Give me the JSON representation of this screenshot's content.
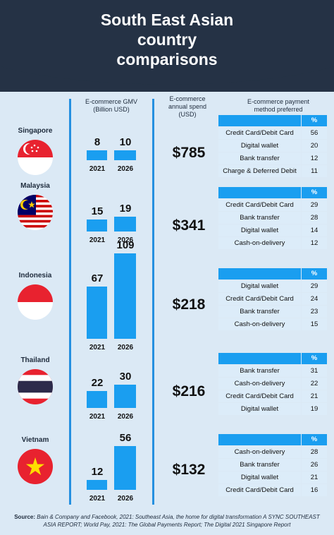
{
  "title_lines": [
    "South East Asian",
    "country",
    "comparisons"
  ],
  "column_headers": {
    "gmv": [
      "E-commerce GMV",
      "(Billion USD)"
    ],
    "spend": [
      "E-commerce",
      "annual spend",
      "(USD)"
    ],
    "payment": [
      "E-commerce payment",
      "method preferred"
    ]
  },
  "percent_header": "%",
  "source": {
    "label": "Source:",
    "text": "Bain & Company and Facebook, 2021: Southeast Asia, the home for digital transformation A SYNC SOUTHEAST ASIA REPORT; World Pay, 2021: The Global Payments Report; The Digital 2021 Singapore Report"
  },
  "colors": {
    "accent": "#1a9ef0",
    "header": "#253245",
    "background": "#dbe9f5",
    "row": "#dcecf9"
  },
  "chart_data": {
    "type": "bar",
    "categories": [
      "2021",
      "2026"
    ],
    "countries": [
      {
        "name": "Singapore",
        "flag": "singapore-flag",
        "gmv": [
          8,
          10
        ],
        "spend": "$785",
        "payments": [
          [
            "Credit Card/Debit Card",
            56
          ],
          [
            "Digital wallet",
            20
          ],
          [
            "Bank transfer",
            12
          ],
          [
            "Charge & Deferred Debit",
            11
          ]
        ]
      },
      {
        "name": "Malaysia",
        "flag": "malaysia-flag",
        "gmv": [
          15,
          19
        ],
        "spend": "$341",
        "payments": [
          [
            "Credit Card/Debit Card",
            29
          ],
          [
            "Bank transfer",
            28
          ],
          [
            "Digital wallet",
            14
          ],
          [
            "Cash-on-delivery",
            12
          ]
        ]
      },
      {
        "name": "Indonesia",
        "flag": "indonesia-flag",
        "gmv": [
          67,
          109
        ],
        "spend": "$218",
        "payments": [
          [
            "Digital wallet",
            29
          ],
          [
            "Credit Card/Debit Card",
            24
          ],
          [
            "Bank transfer",
            23
          ],
          [
            "Cash-on-delivery",
            15
          ]
        ]
      },
      {
        "name": "Thailand",
        "flag": "thailand-flag",
        "gmv": [
          22,
          30
        ],
        "spend": "$216",
        "payments": [
          [
            "Bank transfer",
            31
          ],
          [
            "Cash-on-delivery",
            22
          ],
          [
            "Credit Card/Debit Card",
            21
          ],
          [
            "Digital wallet",
            19
          ]
        ]
      },
      {
        "name": "Vietnam",
        "flag": "vietnam-flag",
        "gmv": [
          12,
          56
        ],
        "spend": "$132",
        "payments": [
          [
            "Cash-on-delivery",
            28
          ],
          [
            "Bank transfer",
            26
          ],
          [
            "Digital wallet",
            21
          ],
          [
            "Credit Card/Debit Card",
            16
          ]
        ]
      }
    ]
  }
}
